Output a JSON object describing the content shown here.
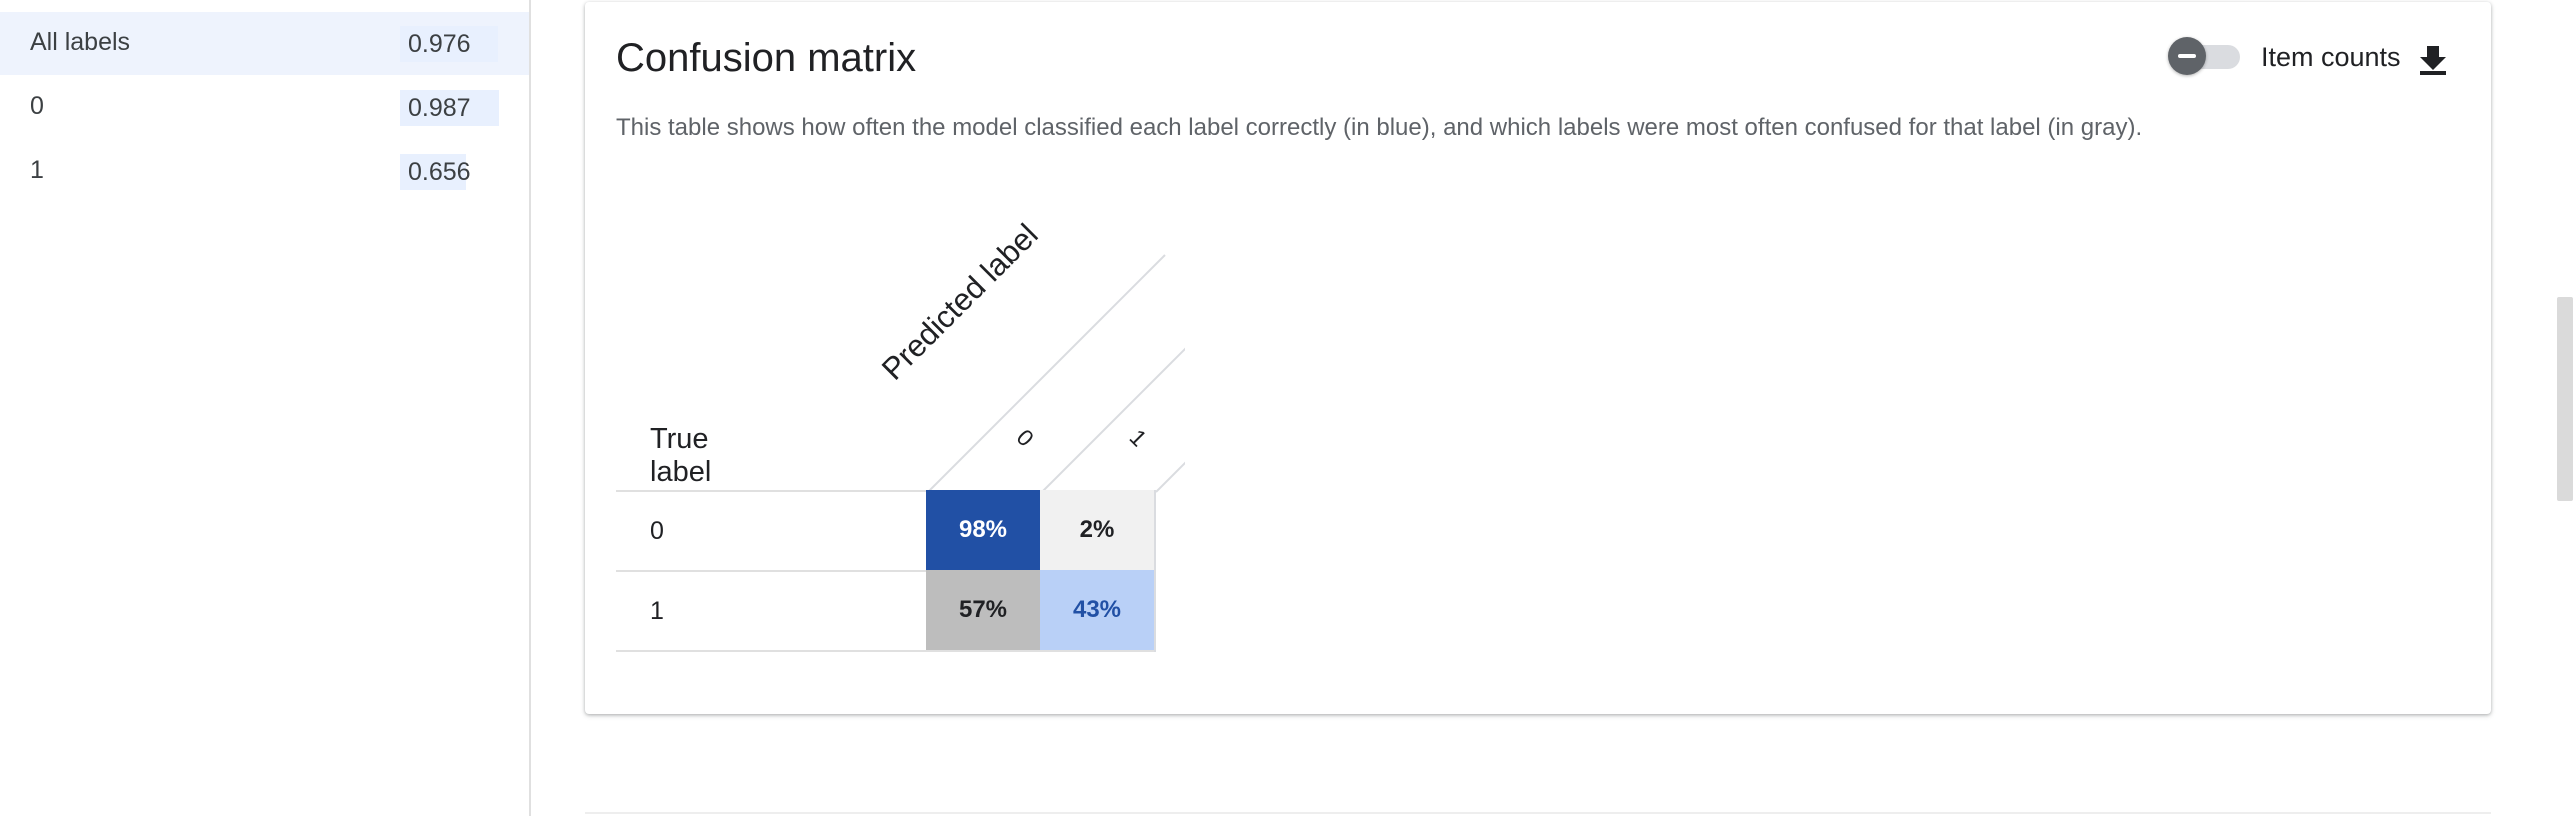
{
  "labels_panel": {
    "items": [
      {
        "label": "All labels",
        "score": "0.976",
        "score_fraction": 0.976,
        "selected": true
      },
      {
        "label": "0",
        "score": "0.987",
        "score_fraction": 0.987,
        "selected": false
      },
      {
        "label": "1",
        "score": "0.656",
        "score_fraction": 0.656,
        "selected": false
      }
    ]
  },
  "card": {
    "title": "Confusion matrix",
    "description": "This table shows how often the model classified each label correctly (in blue), and which labels were most often confused for that label (in gray).",
    "toggle_label": "Item counts",
    "toggle_on": false,
    "toggle_icon": "minus-icon",
    "download_icon": "download-icon"
  },
  "matrix": {
    "true_label_header": "True label",
    "predicted_label_header": "Predicted label",
    "columns": [
      "0",
      "1"
    ],
    "rows": [
      {
        "label": "0",
        "cells": [
          "98%",
          "2%"
        ]
      },
      {
        "label": "1",
        "cells": [
          "57%",
          "43%"
        ]
      }
    ],
    "cell_colors": [
      [
        {
          "bg": "#2150a5",
          "fg": "#ffffff"
        },
        {
          "bg": "#f1f1f1",
          "fg": "#202124"
        }
      ],
      [
        {
          "bg": "#bdbdbd",
          "fg": "#202124"
        },
        {
          "bg": "#b9d0f7",
          "fg": "#2150a5"
        }
      ]
    ]
  },
  "colors": {
    "accent": "#2150a5",
    "selected_row": "#eef3fd",
    "score_bar": "#e8f0fe"
  }
}
